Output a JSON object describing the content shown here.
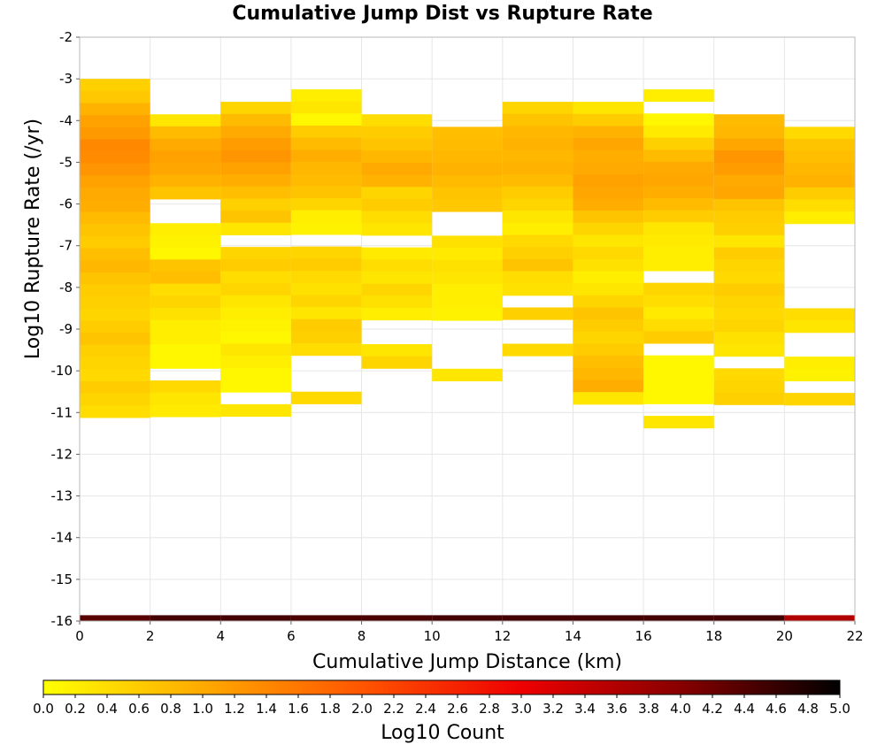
{
  "chart_data": {
    "type": "heatmap",
    "title": "Cumulative Jump Dist vs Rupture Rate",
    "xlabel": "Cumulative Jump Distance (km)",
    "ylabel": "Log10 Rupture Rate (/yr)",
    "xlim": [
      0,
      22
    ],
    "ylim": [
      -16,
      -2
    ],
    "x_ticks": [
      "0",
      "2",
      "4",
      "6",
      "8",
      "10",
      "12",
      "14",
      "16",
      "18",
      "20",
      "22"
    ],
    "y_ticks": [
      "-2",
      "-3",
      "-4",
      "-5",
      "-6",
      "-7",
      "-8",
      "-9",
      "-10",
      "-11",
      "-12",
      "-13",
      "-14",
      "-15",
      "-16"
    ],
    "grid": true,
    "x_bin_width": 2,
    "y_bin_height": 0.29,
    "colorbar": {
      "label": "Log10 Count",
      "range": [
        0,
        5
      ],
      "ticks": [
        "0.0",
        "0.2",
        "0.4",
        "0.6",
        "0.8",
        "1.0",
        "1.2",
        "1.4",
        "1.6",
        "1.8",
        "2.0",
        "2.2",
        "2.4",
        "2.6",
        "2.8",
        "3.0",
        "3.2",
        "3.4",
        "3.6",
        "3.8",
        "4.0",
        "4.2",
        "4.4",
        "4.6",
        "4.8",
        "5.0"
      ],
      "stops": [
        "#ffff00",
        "#ffaa00",
        "#ff5500",
        "#ee0000",
        "#880000",
        "#000000"
      ]
    },
    "columns": [
      {
        "x": 0,
        "y_top": -3.0,
        "values": [
          0.55,
          0.65,
          0.9,
          1.1,
          1.2,
          1.4,
          1.35,
          1.25,
          1.1,
          1.0,
          0.95,
          0.8,
          0.7,
          0.6,
          0.75,
          0.85,
          0.7,
          0.6,
          0.55,
          0.5,
          0.6,
          0.7,
          0.55,
          0.5,
          0.45,
          0.6,
          0.5,
          0.4
        ]
      },
      {
        "x": 2,
        "y_top": -3.85,
        "values": [
          0.3,
          0.8,
          1.0,
          1.1,
          1.05,
          0.9,
          0.7,
          null,
          null,
          0.2,
          0.15,
          0.1,
          0.7,
          0.75,
          0.4,
          0.5,
          0.35,
          0.2,
          0.2,
          0.1,
          0.1,
          null,
          0.45,
          0.3,
          0.25
        ]
      },
      {
        "x": 4,
        "y_top": -3.55,
        "values": [
          0.5,
          0.8,
          1.0,
          1.15,
          1.25,
          1.1,
          0.95,
          0.75,
          0.55,
          0.7,
          0.3,
          null,
          0.5,
          0.6,
          0.4,
          0.5,
          0.3,
          0.2,
          0.15,
          0.1,
          0.3,
          0.2,
          0.1,
          0.1,
          null,
          0.3
        ]
      },
      {
        "x": 6,
        "y_top": -3.25,
        "values": [
          0.2,
          0.3,
          0.1,
          0.6,
          0.8,
          0.95,
          0.85,
          0.8,
          0.7,
          0.5,
          0.2,
          0.15,
          null,
          0.5,
          0.6,
          0.45,
          0.35,
          0.5,
          0.3,
          0.6,
          0.55,
          0.4,
          null,
          null,
          null,
          0.45
        ]
      },
      {
        "x": 8,
        "y_top": -3.85,
        "values": [
          0.4,
          0.6,
          0.7,
          0.85,
          1.0,
          0.9,
          0.5,
          0.6,
          0.4,
          0.3,
          null,
          0.25,
          0.4,
          0.3,
          0.5,
          0.35,
          0.2,
          null,
          null,
          0.3,
          0.5
        ]
      },
      {
        "x": 10,
        "y_top": -4.15,
        "values": [
          0.75,
          0.8,
          0.85,
          0.9,
          0.8,
          0.7,
          0.65,
          null,
          null,
          0.35,
          0.25,
          0.35,
          0.3,
          0.2,
          0.2,
          0.15,
          null,
          null,
          null,
          null,
          0.3
        ]
      },
      {
        "x": 12,
        "y_top": -3.55,
        "values": [
          0.5,
          0.7,
          0.85,
          0.9,
          0.85,
          0.9,
          0.8,
          0.6,
          0.5,
          0.3,
          0.2,
          0.45,
          0.55,
          0.7,
          0.4,
          0.35,
          null,
          0.55,
          null,
          null,
          0.45
        ]
      },
      {
        "x": 14,
        "y_top": -3.55,
        "values": [
          0.3,
          0.6,
          0.9,
          1.05,
          0.95,
          1.0,
          1.1,
          1.05,
          0.95,
          0.7,
          0.5,
          0.3,
          0.45,
          0.35,
          0.2,
          0.3,
          0.5,
          0.7,
          0.6,
          0.5,
          0.6,
          0.75,
          0.85,
          0.95,
          0.3
        ]
      },
      {
        "x": 16,
        "y_top": -3.25,
        "values": [
          0.2,
          null,
          0.1,
          0.25,
          0.55,
          0.8,
          1.0,
          1.05,
          0.95,
          0.8,
          0.6,
          0.3,
          0.25,
          0.2,
          0.2,
          null,
          0.5,
          0.4,
          0.25,
          0.4,
          0.6,
          null,
          0.1,
          0.1,
          0.1,
          0.1,
          null,
          0.3
        ]
      },
      {
        "x": 18,
        "y_top": -3.85,
        "values": [
          0.8,
          0.85,
          1.05,
          1.25,
          1.15,
          1.0,
          1.05,
          0.7,
          0.6,
          0.55,
          0.3,
          0.6,
          0.5,
          0.45,
          0.6,
          0.5,
          0.45,
          0.5,
          0.35,
          0.3,
          null,
          0.45,
          0.5,
          0.55
        ]
      },
      {
        "x": 20,
        "y_top": -4.15,
        "values": [
          0.45,
          0.7,
          0.75,
          0.85,
          0.9,
          0.6,
          0.4,
          0.2,
          null,
          null,
          null,
          null,
          null,
          null,
          null,
          0.4,
          0.3,
          null,
          null,
          0.2,
          0.15,
          null,
          0.5
        ]
      }
    ],
    "bottom_row": {
      "y": -16.0,
      "values": [
        4.35,
        4.5,
        4.5,
        4.45,
        4.45,
        4.5,
        4.5,
        4.5,
        4.5,
        4.5,
        3.6
      ]
    }
  }
}
